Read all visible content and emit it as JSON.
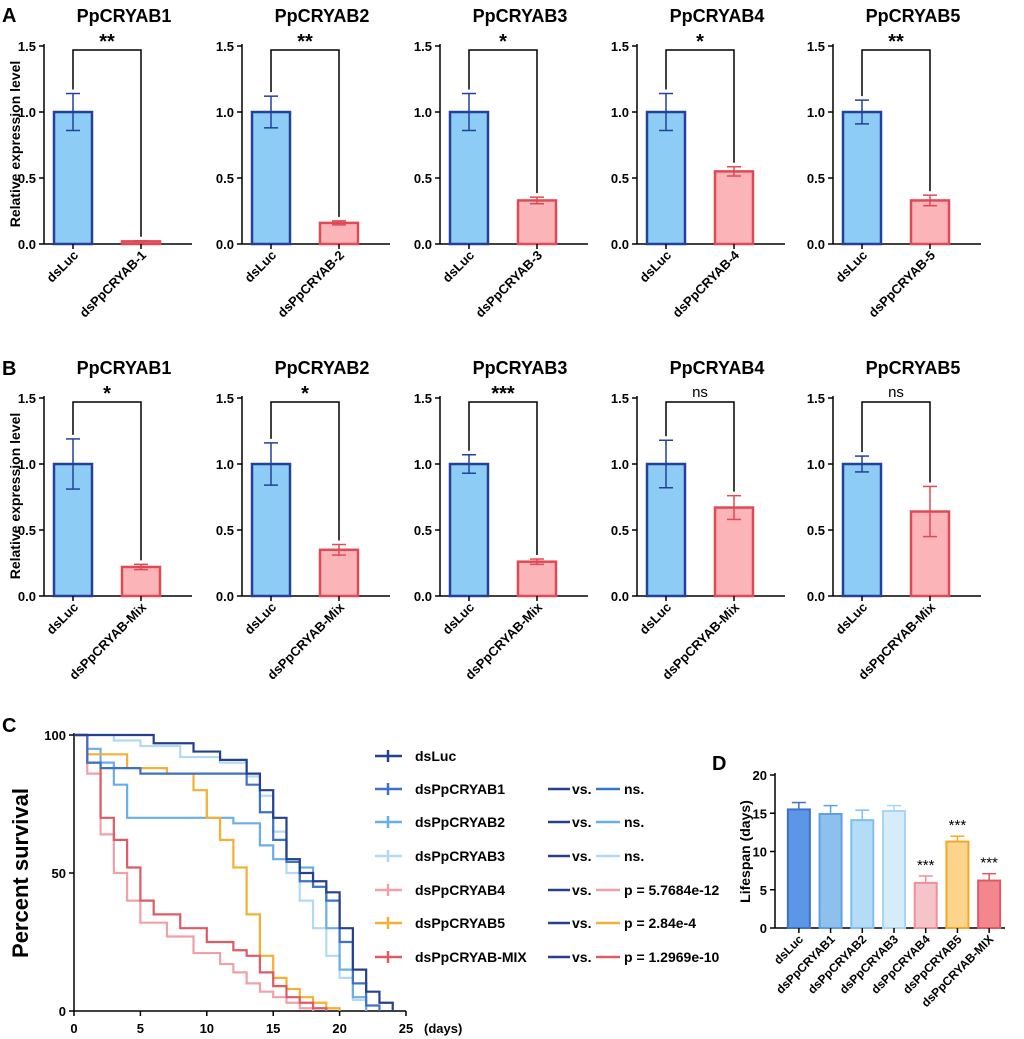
{
  "chart_data": [
    {
      "panel": "A",
      "type": "bar",
      "ylabel": "Relative expression level",
      "ylim": [
        0,
        1.5
      ],
      "yticks": [
        "0.0",
        "0.5",
        "1.0",
        "1.5"
      ],
      "subplots": [
        {
          "title": "PpCRYAB1",
          "categories": [
            "dsLuc",
            "dsPpCRYAB-1"
          ],
          "values": [
            1.0,
            0.02
          ],
          "errors": [
            0.14,
            0.005
          ],
          "significance": "**"
        },
        {
          "title": "PpCRYAB2",
          "categories": [
            "dsLuc",
            "dsPpCRYAB-2"
          ],
          "values": [
            1.0,
            0.16
          ],
          "errors": [
            0.12,
            0.015
          ],
          "significance": "**"
        },
        {
          "title": "PpCRYAB3",
          "categories": [
            "dsLuc",
            "dsPpCRYAB-3"
          ],
          "values": [
            1.0,
            0.33
          ],
          "errors": [
            0.14,
            0.025
          ],
          "significance": "*"
        },
        {
          "title": "PpCRYAB4",
          "categories": [
            "dsLuc",
            "dsPpCRYAB-4"
          ],
          "values": [
            1.0,
            0.55
          ],
          "errors": [
            0.14,
            0.035
          ],
          "significance": "*"
        },
        {
          "title": "PpCRYAB5",
          "categories": [
            "dsLuc",
            "dsPpCRYAB-5"
          ],
          "values": [
            1.0,
            0.33
          ],
          "errors": [
            0.09,
            0.04
          ],
          "significance": "**"
        }
      ]
    },
    {
      "panel": "B",
      "type": "bar",
      "ylabel": "Relative expression level",
      "ylim": [
        0,
        1.5
      ],
      "yticks": [
        "0.0",
        "0.5",
        "1.0",
        "1.5"
      ],
      "subplots": [
        {
          "title": "PpCRYAB1",
          "categories": [
            "dsLuc",
            "dsPpCRYAB-Mix"
          ],
          "values": [
            1.0,
            0.22
          ],
          "errors": [
            0.19,
            0.02
          ],
          "significance": "*"
        },
        {
          "title": "PpCRYAB2",
          "categories": [
            "dsLuc",
            "dsPpCRYAB-Mix"
          ],
          "values": [
            1.0,
            0.35
          ],
          "errors": [
            0.16,
            0.04
          ],
          "significance": "*"
        },
        {
          "title": "PpCRYAB3",
          "categories": [
            "dsLuc",
            "dsPpCRYAB-Mix"
          ],
          "values": [
            1.0,
            0.26
          ],
          "errors": [
            0.07,
            0.02
          ],
          "significance": "***"
        },
        {
          "title": "PpCRYAB4",
          "categories": [
            "dsLuc",
            "dsPpCRYAB-Mix"
          ],
          "values": [
            1.0,
            0.67
          ],
          "errors": [
            0.18,
            0.09
          ],
          "significance": "ns"
        },
        {
          "title": "PpCRYAB5",
          "categories": [
            "dsLuc",
            "dsPpCRYAB-Mix"
          ],
          "values": [
            1.0,
            0.64
          ],
          "errors": [
            0.06,
            0.19
          ],
          "significance": "ns"
        }
      ]
    },
    {
      "panel": "C",
      "type": "line",
      "ylabel": "Percent survival",
      "xlabel": "(days)",
      "xlim": [
        0,
        25
      ],
      "ylim": [
        0,
        100
      ],
      "xticks": [
        "0",
        "5",
        "10",
        "15",
        "20",
        "25"
      ],
      "yticks": [
        "0",
        "50",
        "100"
      ],
      "vs_label": "vs.",
      "series": [
        {
          "name": "dsLuc",
          "color": "#24408e",
          "comparison": "",
          "points": [
            [
              0,
              100
            ],
            [
              5,
              100
            ],
            [
              6,
              97
            ],
            [
              9,
              94
            ],
            [
              11,
              91
            ],
            [
              13,
              86
            ],
            [
              14,
              80
            ],
            [
              15,
              70
            ],
            [
              16,
              55
            ],
            [
              17,
              50
            ],
            [
              18,
              47
            ],
            [
              19,
              43
            ],
            [
              20,
              30
            ],
            [
              21,
              15
            ],
            [
              22,
              7
            ],
            [
              23,
              3
            ],
            [
              24,
              0
            ]
          ]
        },
        {
          "name": "dsPpCRYAB1",
          "color": "#3d72c4",
          "comparison": "ns.",
          "points": [
            [
              0,
              100
            ],
            [
              1,
              90
            ],
            [
              2,
              88
            ],
            [
              5,
              86
            ],
            [
              12,
              86
            ],
            [
              13,
              82
            ],
            [
              14,
              72
            ],
            [
              15,
              62
            ],
            [
              16,
              54
            ],
            [
              17,
              47
            ],
            [
              18,
              45
            ],
            [
              19,
              40
            ],
            [
              20,
              25
            ],
            [
              21,
              10
            ],
            [
              22,
              2
            ],
            [
              23,
              0
            ]
          ]
        },
        {
          "name": "dsPpCRYAB2",
          "color": "#6aaee8",
          "comparison": "ns.",
          "points": [
            [
              0,
              100
            ],
            [
              1,
              95
            ],
            [
              2,
              90
            ],
            [
              3,
              82
            ],
            [
              4,
              70
            ],
            [
              8,
              70
            ],
            [
              12,
              68
            ],
            [
              14,
              60
            ],
            [
              15,
              55
            ],
            [
              17,
              52
            ],
            [
              18,
              45
            ],
            [
              19,
              30
            ],
            [
              20,
              15
            ],
            [
              21,
              5
            ],
            [
              22,
              0
            ]
          ]
        },
        {
          "name": "dsPpCRYAB3",
          "color": "#b2daf4",
          "comparison": "ns.",
          "points": [
            [
              0,
              100
            ],
            [
              3,
              98
            ],
            [
              5,
              96
            ],
            [
              8,
              92
            ],
            [
              11,
              90
            ],
            [
              13,
              85
            ],
            [
              14,
              78
            ],
            [
              15,
              65
            ],
            [
              16,
              50
            ],
            [
              17,
              40
            ],
            [
              18,
              30
            ],
            [
              19,
              20
            ],
            [
              20,
              12
            ],
            [
              21,
              4
            ],
            [
              22,
              0
            ]
          ]
        },
        {
          "name": "dsPpCRYAB4",
          "color": "#f0a0a8",
          "comparison": "p = 5.7684e-12",
          "points": [
            [
              0,
              100
            ],
            [
              1,
              86
            ],
            [
              2,
              64
            ],
            [
              3,
              50
            ],
            [
              4,
              40
            ],
            [
              5,
              32
            ],
            [
              7,
              27
            ],
            [
              9,
              21
            ],
            [
              11,
              17
            ],
            [
              12,
              14
            ],
            [
              13,
              10
            ],
            [
              14,
              7
            ],
            [
              15,
              5
            ],
            [
              16,
              3
            ],
            [
              17,
              1
            ],
            [
              18,
              0
            ]
          ]
        },
        {
          "name": "dsPpCRYAB5",
          "color": "#f5b032",
          "comparison": "p = 2.84e-4",
          "points": [
            [
              0,
              100
            ],
            [
              1,
              93
            ],
            [
              4,
              88
            ],
            [
              7,
              86
            ],
            [
              9,
              80
            ],
            [
              10,
              70
            ],
            [
              11,
              62
            ],
            [
              12,
              52
            ],
            [
              13,
              35
            ],
            [
              14,
              20
            ],
            [
              15,
              12
            ],
            [
              16,
              8
            ],
            [
              17,
              5
            ],
            [
              18,
              3
            ],
            [
              19,
              1
            ],
            [
              20,
              0
            ]
          ]
        },
        {
          "name": "dsPpCRYAB-MIX",
          "color": "#e05a64",
          "comparison": "p = 1.2969e-10",
          "points": [
            [
              0,
              100
            ],
            [
              1,
              90
            ],
            [
              2,
              70
            ],
            [
              3,
              62
            ],
            [
              4,
              52
            ],
            [
              5,
              40
            ],
            [
              6,
              35
            ],
            [
              8,
              30
            ],
            [
              10,
              25
            ],
            [
              12,
              22
            ],
            [
              13,
              20
            ],
            [
              14,
              14
            ],
            [
              15,
              9
            ],
            [
              16,
              5
            ],
            [
              17,
              3
            ],
            [
              18,
              1
            ],
            [
              19,
              0
            ]
          ]
        }
      ]
    },
    {
      "panel": "D",
      "type": "bar",
      "ylabel": "Lifespan (days)",
      "ylim": [
        0,
        20
      ],
      "yticks": [
        "0",
        "5",
        "10",
        "15",
        "20"
      ],
      "categories": [
        "dsLuc",
        "dsPpCRYAB1",
        "dsPpCRYAB2",
        "dsPpCRYAB3",
        "dsPpCRYAB4",
        "dsPpCRYAB5",
        "dsPpCRYAB-MIX"
      ],
      "values": [
        15.5,
        14.9,
        14.1,
        15.3,
        5.9,
        11.3,
        6.2
      ],
      "errors": [
        0.9,
        1.1,
        1.3,
        0.7,
        0.9,
        0.7,
        0.9
      ],
      "fills": [
        "#5c96e6",
        "#8ec0ee",
        "#b4dcf6",
        "#d6ecfa",
        "#f5c4c8",
        "#fcd48c",
        "#f2878f"
      ],
      "strokes": [
        "#3d72c4",
        "#5fa0e0",
        "#7ec0ee",
        "#a6d6f4",
        "#ef8f98",
        "#f5a828",
        "#e05a64"
      ],
      "significance": [
        "",
        "",
        "",
        "",
        "***",
        "***",
        "***"
      ]
    }
  ],
  "panel_labels": [
    "A",
    "B",
    "C",
    "D"
  ]
}
